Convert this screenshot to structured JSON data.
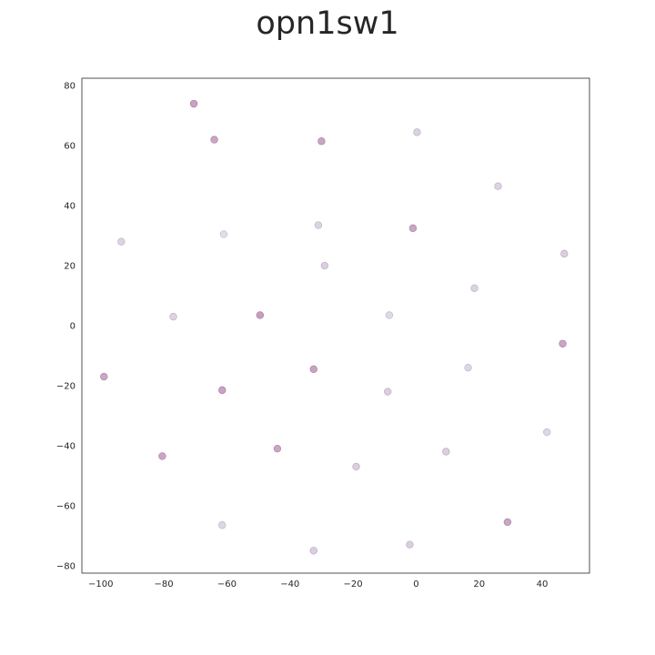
{
  "chart_data": {
    "type": "scatter",
    "title": "opn1sw1",
    "xlabel": "",
    "ylabel": "",
    "xlim": [
      -106,
      55
    ],
    "ylim": [
      -82.5,
      82.5
    ],
    "xticks": [
      -100,
      -80,
      -60,
      -40,
      -20,
      0,
      20,
      40
    ],
    "yticks": [
      -80,
      -60,
      -40,
      -20,
      0,
      20,
      40,
      60,
      80
    ],
    "grid": false,
    "legend": "none",
    "point_color": "#b07aa5",
    "points": [
      {
        "x": -70.5,
        "y": 74.0,
        "value": 0.9
      },
      {
        "x": -64.0,
        "y": 62.0,
        "value": 0.85
      },
      {
        "x": -30.0,
        "y": 61.5,
        "value": 0.85
      },
      {
        "x": 0.3,
        "y": 64.5,
        "value": 0.3
      },
      {
        "x": 26.0,
        "y": 46.5,
        "value": 0.3
      },
      {
        "x": -93.5,
        "y": 28.0,
        "value": 0.3
      },
      {
        "x": -61.0,
        "y": 30.5,
        "value": 0.15
      },
      {
        "x": -31.0,
        "y": 33.5,
        "value": 0.3
      },
      {
        "x": -1.0,
        "y": 32.5,
        "value": 0.85
      },
      {
        "x": -29.0,
        "y": 20.0,
        "value": 0.35
      },
      {
        "x": 47.0,
        "y": 24.0,
        "value": 0.35
      },
      {
        "x": 18.5,
        "y": 12.5,
        "value": 0.3
      },
      {
        "x": -77.0,
        "y": 3.0,
        "value": 0.3
      },
      {
        "x": -49.5,
        "y": 3.5,
        "value": 0.95
      },
      {
        "x": -8.5,
        "y": 3.5,
        "value": 0.2
      },
      {
        "x": 46.5,
        "y": -6.0,
        "value": 0.85
      },
      {
        "x": -99.0,
        "y": -17.0,
        "value": 0.85
      },
      {
        "x": -32.5,
        "y": -14.5,
        "value": 0.9
      },
      {
        "x": 16.5,
        "y": -14.0,
        "value": 0.25
      },
      {
        "x": -61.5,
        "y": -21.5,
        "value": 0.9
      },
      {
        "x": -9.0,
        "y": -22.0,
        "value": 0.35
      },
      {
        "x": 41.5,
        "y": -35.5,
        "value": 0.25
      },
      {
        "x": -80.5,
        "y": -43.5,
        "value": 0.85
      },
      {
        "x": -44.0,
        "y": -41.0,
        "value": 0.85
      },
      {
        "x": 9.5,
        "y": -42.0,
        "value": 0.35
      },
      {
        "x": -19.0,
        "y": -47.0,
        "value": 0.35
      },
      {
        "x": -61.5,
        "y": -66.5,
        "value": 0.25
      },
      {
        "x": 29.0,
        "y": -65.5,
        "value": 0.85
      },
      {
        "x": -32.5,
        "y": -75.0,
        "value": 0.35
      },
      {
        "x": -2.0,
        "y": -73.0,
        "value": 0.35
      }
    ]
  }
}
